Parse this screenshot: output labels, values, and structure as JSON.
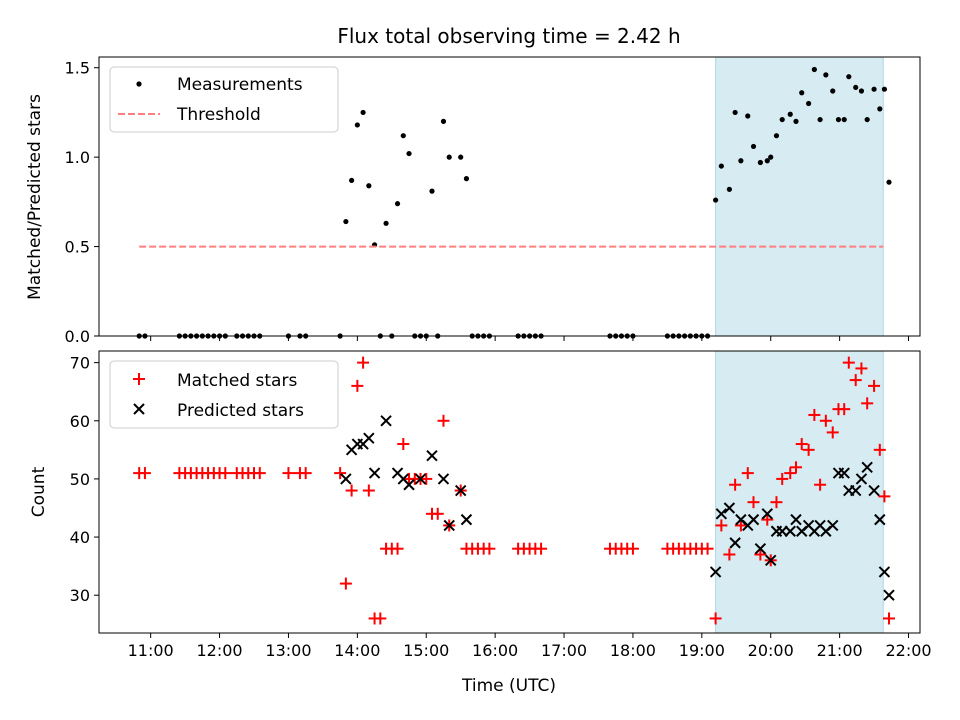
{
  "chart_data": [
    {
      "type": "scatter",
      "title": "Flux total observing time = 2.42 h",
      "xlabel": "",
      "ylabel": "Matched/Predicted stars",
      "xlim": [
        "10:15",
        "22:10"
      ],
      "ylim": [
        0,
        1.56
      ],
      "yticks": [
        0.0,
        0.5,
        1.0,
        1.5
      ],
      "ytick_labels": [
        "0.0",
        "0.5",
        "1.0",
        "1.5"
      ],
      "legend_position": "top-left",
      "shaded_region": {
        "from": "19:12",
        "to": "21:38",
        "color": "#add8e6"
      },
      "series": [
        {
          "name": "Measurements",
          "marker": "dot",
          "color": "#000000",
          "points": [
            [
              "10:50",
              0
            ],
            [
              "10:55",
              0
            ],
            [
              "11:25",
              0
            ],
            [
              "11:30",
              0
            ],
            [
              "11:35",
              0
            ],
            [
              "11:40",
              0
            ],
            [
              "11:45",
              0
            ],
            [
              "11:50",
              0
            ],
            [
              "11:55",
              0
            ],
            [
              "12:00",
              0
            ],
            [
              "12:05",
              0
            ],
            [
              "12:15",
              0
            ],
            [
              "12:20",
              0
            ],
            [
              "12:25",
              0
            ],
            [
              "12:30",
              0
            ],
            [
              "12:35",
              0
            ],
            [
              "13:00",
              0
            ],
            [
              "13:10",
              0
            ],
            [
              "13:15",
              0
            ],
            [
              "13:45",
              0
            ],
            [
              "13:50",
              0.64
            ],
            [
              "13:55",
              0.87
            ],
            [
              "14:00",
              1.18
            ],
            [
              "14:05",
              1.25
            ],
            [
              "14:10",
              0.84
            ],
            [
              "14:15",
              0.51
            ],
            [
              "14:20",
              0
            ],
            [
              "14:25",
              0.63
            ],
            [
              "14:30",
              0
            ],
            [
              "14:35",
              0.74
            ],
            [
              "14:40",
              1.12
            ],
            [
              "14:45",
              1.02
            ],
            [
              "14:50",
              0
            ],
            [
              "14:55",
              0
            ],
            [
              "15:00",
              0
            ],
            [
              "15:05",
              0.81
            ],
            [
              "15:10",
              0
            ],
            [
              "15:15",
              1.2
            ],
            [
              "15:20",
              1.0
            ],
            [
              "15:30",
              1.0
            ],
            [
              "15:35",
              0.88
            ],
            [
              "15:40",
              0
            ],
            [
              "15:45",
              0
            ],
            [
              "15:50",
              0
            ],
            [
              "15:55",
              0
            ],
            [
              "16:20",
              0
            ],
            [
              "16:25",
              0
            ],
            [
              "16:30",
              0
            ],
            [
              "16:35",
              0
            ],
            [
              "16:40",
              0
            ],
            [
              "17:40",
              0
            ],
            [
              "17:45",
              0
            ],
            [
              "17:50",
              0
            ],
            [
              "17:55",
              0
            ],
            [
              "18:00",
              0
            ],
            [
              "18:30",
              0
            ],
            [
              "18:35",
              0
            ],
            [
              "18:40",
              0
            ],
            [
              "18:45",
              0
            ],
            [
              "18:50",
              0
            ],
            [
              "18:55",
              0
            ],
            [
              "19:00",
              0
            ],
            [
              "19:05",
              0
            ],
            [
              "19:12",
              0.76
            ],
            [
              "19:17",
              0.95
            ],
            [
              "19:24",
              0.82
            ],
            [
              "19:29",
              1.25
            ],
            [
              "19:34",
              0.98
            ],
            [
              "19:40",
              1.23
            ],
            [
              "19:45",
              1.06
            ],
            [
              "19:51",
              0.97
            ],
            [
              "19:57",
              0.98
            ],
            [
              "20:00",
              1.0
            ],
            [
              "20:05",
              1.12
            ],
            [
              "20:10",
              1.21
            ],
            [
              "20:17",
              1.24
            ],
            [
              "20:22",
              1.2
            ],
            [
              "20:27",
              1.36
            ],
            [
              "20:33",
              1.3
            ],
            [
              "20:38",
              1.49
            ],
            [
              "20:43",
              1.21
            ],
            [
              "20:48",
              1.46
            ],
            [
              "20:54",
              1.37
            ],
            [
              "20:59",
              1.21
            ],
            [
              "21:04",
              1.21
            ],
            [
              "21:08",
              1.45
            ],
            [
              "21:14",
              1.39
            ],
            [
              "21:19",
              1.37
            ],
            [
              "21:24",
              1.21
            ],
            [
              "21:30",
              1.38
            ],
            [
              "21:35",
              1.27
            ],
            [
              "21:39",
              1.38
            ],
            [
              "21:43",
              0.86
            ]
          ]
        },
        {
          "name": "Threshold",
          "marker": "dashed-line",
          "color": "#ff7f7f",
          "points": [
            [
              "10:50",
              0.5
            ],
            [
              "21:38",
              0.5
            ]
          ]
        }
      ]
    },
    {
      "type": "scatter",
      "title": "",
      "xlabel": "Time (UTC)",
      "ylabel": "Count",
      "xlim": [
        "10:15",
        "22:10"
      ],
      "ylim": [
        23.5,
        72
      ],
      "yticks": [
        30,
        40,
        50,
        60,
        70
      ],
      "ytick_labels": [
        "30",
        "40",
        "50",
        "60",
        "70"
      ],
      "xticks": [
        "11:00",
        "12:00",
        "13:00",
        "14:00",
        "15:00",
        "16:00",
        "17:00",
        "18:00",
        "19:00",
        "20:00",
        "21:00",
        "22:00"
      ],
      "legend_position": "top-left",
      "shaded_region": {
        "from": "19:12",
        "to": "21:38",
        "color": "#add8e6"
      },
      "series": [
        {
          "name": "Matched stars",
          "marker": "plus",
          "color": "#ff0000",
          "points": [
            [
              "10:50",
              51
            ],
            [
              "10:55",
              51
            ],
            [
              "11:25",
              51
            ],
            [
              "11:30",
              51
            ],
            [
              "11:35",
              51
            ],
            [
              "11:40",
              51
            ],
            [
              "11:45",
              51
            ],
            [
              "11:50",
              51
            ],
            [
              "11:55",
              51
            ],
            [
              "12:00",
              51
            ],
            [
              "12:05",
              51
            ],
            [
              "12:15",
              51
            ],
            [
              "12:20",
              51
            ],
            [
              "12:25",
              51
            ],
            [
              "12:30",
              51
            ],
            [
              "12:35",
              51
            ],
            [
              "13:00",
              51
            ],
            [
              "13:10",
              51
            ],
            [
              "13:15",
              51
            ],
            [
              "13:45",
              51
            ],
            [
              "13:50",
              32
            ],
            [
              "13:55",
              48
            ],
            [
              "14:00",
              66
            ],
            [
              "14:05",
              70
            ],
            [
              "14:10",
              48
            ],
            [
              "14:15",
              26
            ],
            [
              "14:20",
              26
            ],
            [
              "14:25",
              38
            ],
            [
              "14:30",
              38
            ],
            [
              "14:35",
              38
            ],
            [
              "14:40",
              56
            ],
            [
              "14:45",
              50
            ],
            [
              "14:50",
              50
            ],
            [
              "14:55",
              50
            ],
            [
              "15:00",
              50
            ],
            [
              "15:05",
              44
            ],
            [
              "15:10",
              44
            ],
            [
              "15:15",
              60
            ],
            [
              "15:20",
              42
            ],
            [
              "15:30",
              48
            ],
            [
              "15:35",
              38
            ],
            [
              "15:40",
              38
            ],
            [
              "15:45",
              38
            ],
            [
              "15:50",
              38
            ],
            [
              "15:55",
              38
            ],
            [
              "16:20",
              38
            ],
            [
              "16:25",
              38
            ],
            [
              "16:30",
              38
            ],
            [
              "16:35",
              38
            ],
            [
              "16:40",
              38
            ],
            [
              "17:40",
              38
            ],
            [
              "17:45",
              38
            ],
            [
              "17:50",
              38
            ],
            [
              "17:55",
              38
            ],
            [
              "18:00",
              38
            ],
            [
              "18:30",
              38
            ],
            [
              "18:35",
              38
            ],
            [
              "18:40",
              38
            ],
            [
              "18:45",
              38
            ],
            [
              "18:50",
              38
            ],
            [
              "18:55",
              38
            ],
            [
              "19:00",
              38
            ],
            [
              "19:05",
              38
            ],
            [
              "19:12",
              26
            ],
            [
              "19:17",
              42
            ],
            [
              "19:24",
              37
            ],
            [
              "19:29",
              49
            ],
            [
              "19:34",
              42
            ],
            [
              "19:40",
              51
            ],
            [
              "19:45",
              46
            ],
            [
              "19:51",
              37
            ],
            [
              "19:57",
              43
            ],
            [
              "20:00",
              36
            ],
            [
              "20:05",
              46
            ],
            [
              "20:10",
              50
            ],
            [
              "20:17",
              51
            ],
            [
              "20:22",
              52
            ],
            [
              "20:27",
              56
            ],
            [
              "20:33",
              55
            ],
            [
              "20:38",
              61
            ],
            [
              "20:43",
              49
            ],
            [
              "20:48",
              60
            ],
            [
              "20:54",
              58
            ],
            [
              "20:59",
              62
            ],
            [
              "21:04",
              62
            ],
            [
              "21:08",
              70
            ],
            [
              "21:14",
              67
            ],
            [
              "21:19",
              69
            ],
            [
              "21:24",
              63
            ],
            [
              "21:30",
              66
            ],
            [
              "21:35",
              55
            ],
            [
              "21:39",
              47
            ],
            [
              "21:43",
              26
            ]
          ]
        },
        {
          "name": "Predicted stars",
          "marker": "x",
          "color": "#000000",
          "points": [
            [
              "13:50",
              50
            ],
            [
              "13:55",
              55
            ],
            [
              "14:00",
              56
            ],
            [
              "14:05",
              56
            ],
            [
              "14:10",
              57
            ],
            [
              "14:15",
              51
            ],
            [
              "14:25",
              60
            ],
            [
              "14:35",
              51
            ],
            [
              "14:40",
              50
            ],
            [
              "14:45",
              49
            ],
            [
              "14:55",
              50
            ],
            [
              "15:05",
              54
            ],
            [
              "15:15",
              50
            ],
            [
              "15:20",
              42
            ],
            [
              "15:30",
              48
            ],
            [
              "15:35",
              43
            ],
            [
              "19:12",
              34
            ],
            [
              "19:17",
              44
            ],
            [
              "19:24",
              45
            ],
            [
              "19:29",
              39
            ],
            [
              "19:34",
              43
            ],
            [
              "19:40",
              42
            ],
            [
              "19:45",
              43
            ],
            [
              "19:51",
              38
            ],
            [
              "19:57",
              44
            ],
            [
              "20:00",
              36
            ],
            [
              "20:05",
              41
            ],
            [
              "20:10",
              41
            ],
            [
              "20:17",
              41
            ],
            [
              "20:22",
              43
            ],
            [
              "20:27",
              41
            ],
            [
              "20:33",
              42
            ],
            [
              "20:38",
              41
            ],
            [
              "20:43",
              42
            ],
            [
              "20:48",
              41
            ],
            [
              "20:54",
              42
            ],
            [
              "20:59",
              51
            ],
            [
              "21:04",
              51
            ],
            [
              "21:08",
              48
            ],
            [
              "21:14",
              48
            ],
            [
              "21:19",
              50
            ],
            [
              "21:24",
              52
            ],
            [
              "21:30",
              48
            ],
            [
              "21:35",
              43
            ],
            [
              "21:39",
              34
            ],
            [
              "21:43",
              30
            ]
          ]
        }
      ]
    }
  ]
}
